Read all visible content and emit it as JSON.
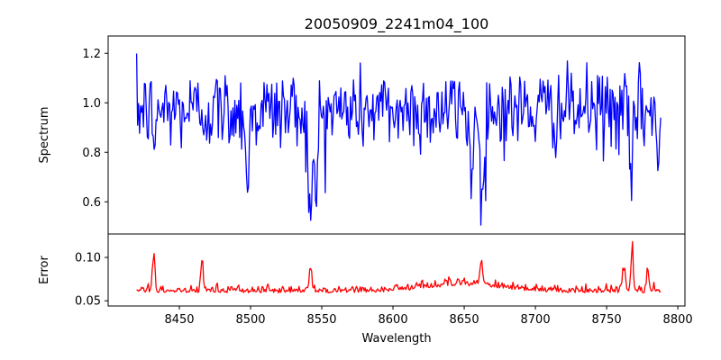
{
  "chart_data": [
    {
      "type": "line",
      "title": "20050909_2241m04_100",
      "xlabel": "",
      "ylabel": "Spectrum",
      "xlim": [
        8400,
        8805
      ],
      "ylim": [
        0.47,
        1.27
      ],
      "yticks": [
        0.6,
        0.8,
        1.0,
        1.2
      ],
      "ytick_labels": [
        "0.6",
        "0.8",
        "1.0",
        "1.2"
      ],
      "grid": false,
      "series": [
        {
          "color": "#0000ff",
          "x_start": 8420,
          "x_end": 8788,
          "points": 540,
          "baseline": 0.97,
          "noise_sd": 0.11,
          "features": [
            {
              "center": 8498,
              "depth": 0.32,
              "width": 1.5
            },
            {
              "center": 8542,
              "depth": 0.48,
              "width": 2.0
            },
            {
              "center": 8546,
              "depth": 0.35,
              "width": 1.5
            },
            {
              "center": 8662,
              "depth": 0.38,
              "width": 1.8
            },
            {
              "center": 8655,
              "depth": 0.28,
              "width": 1.5
            },
            {
              "center": 8767,
              "depth": 0.42,
              "width": 1.2
            },
            {
              "center": 8786,
              "depth": 0.24,
              "width": 1.2
            },
            {
              "center": 8432,
              "depth": 0.22,
              "width": 1.0
            }
          ]
        }
      ]
    },
    {
      "type": "line",
      "title": "",
      "xlabel": "Wavelength",
      "ylabel": "Error",
      "xlim": [
        8400,
        8805
      ],
      "ylim": [
        0.044,
        0.127
      ],
      "yticks": [
        0.05,
        0.1
      ],
      "ytick_labels": [
        "0.05",
        "0.10"
      ],
      "xticks": [
        8450,
        8500,
        8550,
        8600,
        8650,
        8700,
        8750,
        8800
      ],
      "xtick_labels": [
        "8450",
        "8500",
        "8550",
        "8600",
        "8650",
        "8700",
        "8750",
        "8800"
      ],
      "grid": false,
      "series": [
        {
          "color": "#ff0000",
          "x_start": 8420,
          "x_end": 8788,
          "points": 540,
          "baseline": 0.061,
          "noise_sd": 0.0045,
          "features": [
            {
              "center": 8432,
              "height": 0.045,
              "width": 1.2
            },
            {
              "center": 8466,
              "height": 0.055,
              "width": 1.0
            },
            {
              "center": 8542,
              "height": 0.03,
              "width": 1.5
            },
            {
              "center": 8662,
              "height": 0.03,
              "width": 1.5
            },
            {
              "center": 8768,
              "height": 0.062,
              "width": 1.0
            },
            {
              "center": 8762,
              "height": 0.035,
              "width": 1.5
            },
            {
              "center": 8779,
              "height": 0.03,
              "width": 1.2
            }
          ]
        }
      ]
    }
  ]
}
